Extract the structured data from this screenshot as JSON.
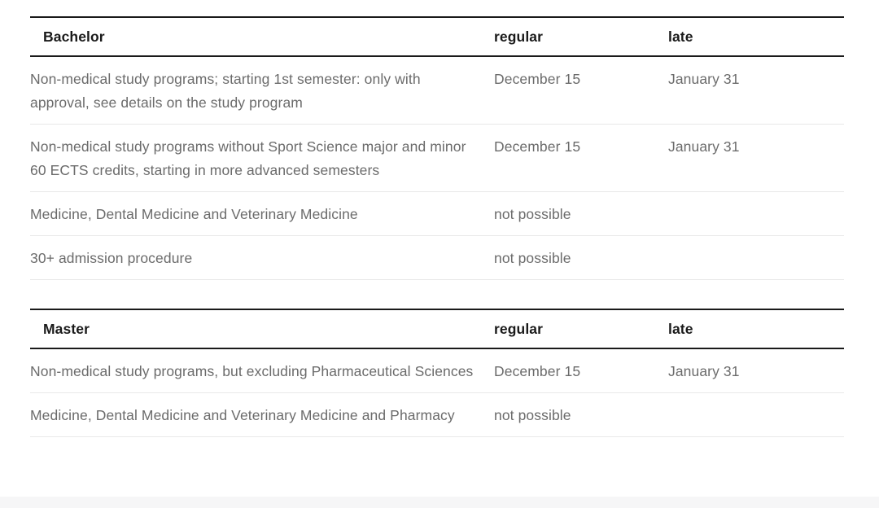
{
  "colors": {
    "header_text": "#1a1a1a",
    "body_text": "#6b6b6b",
    "strong_border": "#1a1a1a",
    "light_border": "#e8e8e8",
    "bottom_band": "#f6f6f7"
  },
  "tables": [
    {
      "header": {
        "title": "Bachelor",
        "col2": "regular",
        "col3": "late"
      },
      "rows": [
        {
          "program": "Non-medical study programs; starting 1st semester: only with approval, see details on the study program",
          "regular": "December 15",
          "late": "January 31"
        },
        {
          "program": "Non-medical study programs without Sport Science major and minor 60 ECTS credits, starting in more advanced semesters",
          "regular": "December 15",
          "late": "January 31"
        },
        {
          "program": "Medicine, Dental Medicine and Veterinary Medicine",
          "regular": "not possible",
          "late": ""
        },
        {
          "program": "30+ admission procedure",
          "regular": "not possible",
          "late": ""
        }
      ]
    },
    {
      "header": {
        "title": "Master",
        "col2": "regular",
        "col3": "late"
      },
      "rows": [
        {
          "program": "Non-medical study programs, but excluding Pharmaceutical Sciences",
          "regular": "December 15",
          "late": "January 31"
        },
        {
          "program": "Medicine, Dental Medicine and Veterinary Medicine and Pharmacy",
          "regular": "not possible",
          "late": ""
        }
      ]
    }
  ]
}
